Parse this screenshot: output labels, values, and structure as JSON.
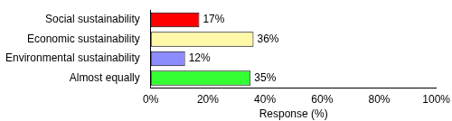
{
  "chart_data": {
    "type": "bar",
    "orientation": "horizontal",
    "categories": [
      "Social sustainability",
      "Economic sustainability",
      "Environmental sustainability",
      "Almost equally"
    ],
    "values": [
      17,
      36,
      12,
      35
    ],
    "value_labels": [
      "17%",
      "36%",
      "12%",
      "35%"
    ],
    "colors": [
      "#ff0000",
      "#fff8a8",
      "#8c8cff",
      "#33ff33"
    ],
    "x_label": "Response (%)",
    "xlim": [
      0,
      100
    ],
    "xticks": [
      {
        "value": 0,
        "label": "0%"
      },
      {
        "value": 20,
        "label": "20%"
      },
      {
        "value": 40,
        "label": "40%"
      },
      {
        "value": 60,
        "label": "60%"
      },
      {
        "value": 80,
        "label": "80%"
      },
      {
        "value": 100,
        "label": "100%"
      }
    ],
    "grid": false,
    "data_labels": true
  }
}
